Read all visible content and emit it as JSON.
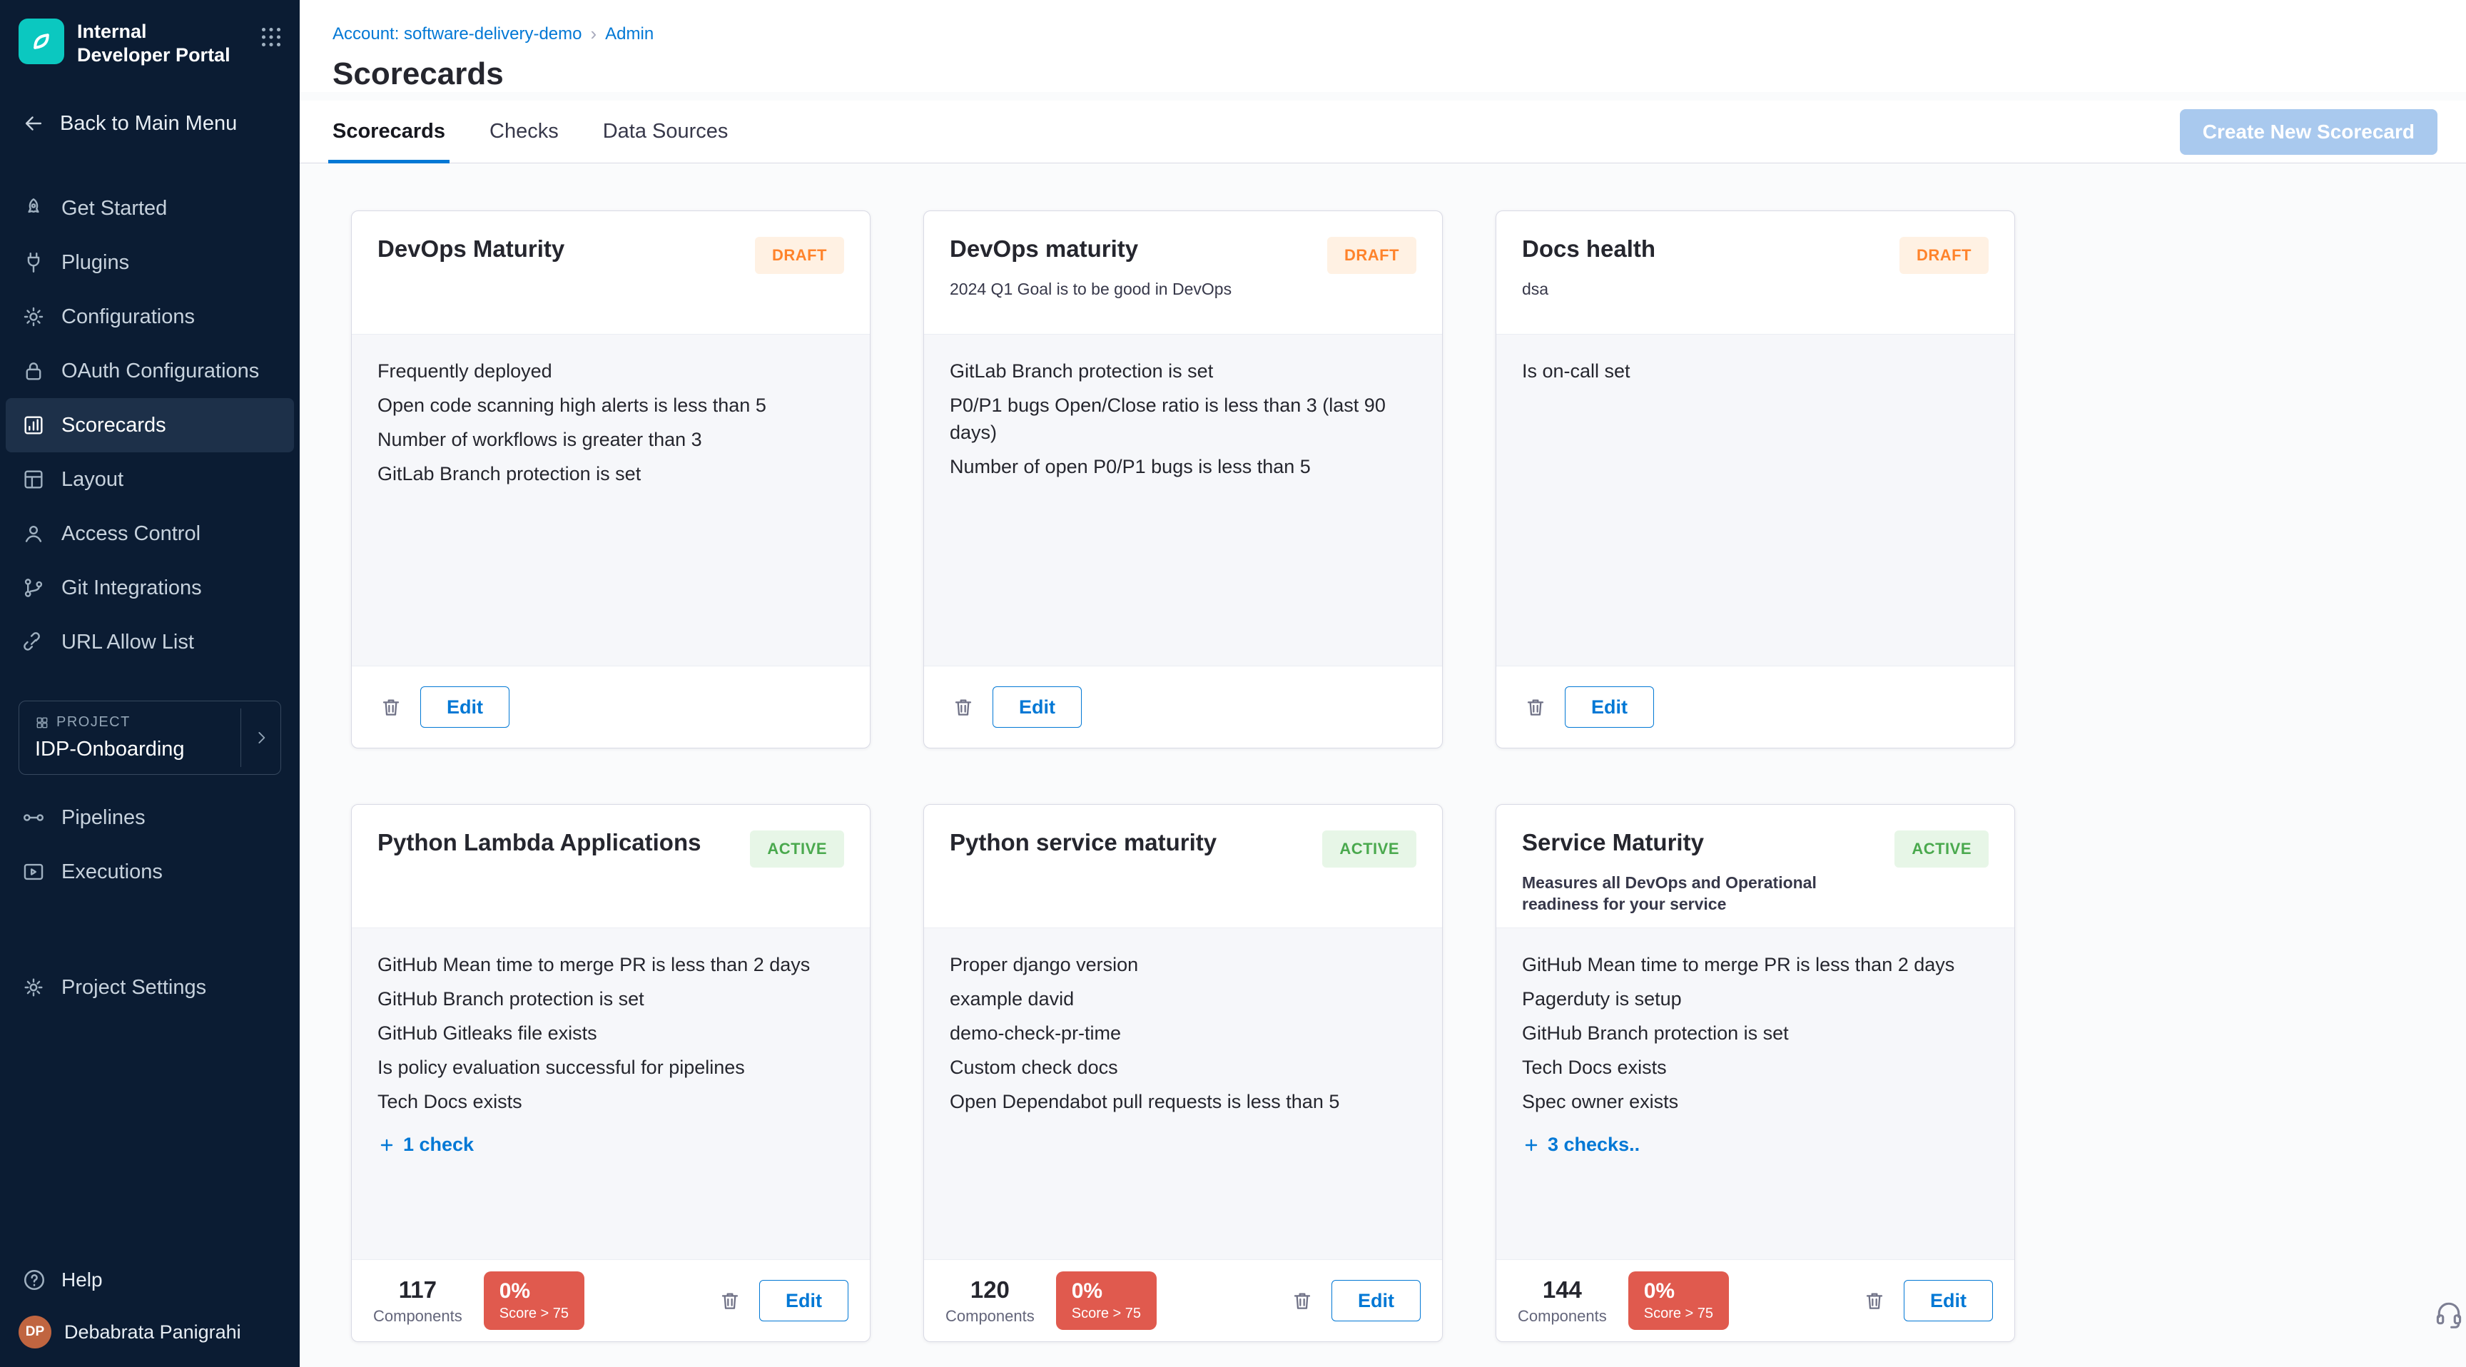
{
  "colors": {
    "accent_blue": "#0278d5",
    "brand_teal": "#0bc8c0",
    "sidebar_bg": "#0b1c33",
    "draft_text": "#ff832b",
    "draft_bg": "#fff1e3",
    "active_text": "#4aa94e",
    "active_bg": "#e7f6e7",
    "score_badge_bg": "#e05a4e"
  },
  "sidebar": {
    "brand_title": "Internal Developer Portal",
    "back_label": "Back to Main Menu",
    "sections": [
      {
        "items": [
          {
            "label": "Get Started",
            "icon": "rocket-icon"
          },
          {
            "label": "Plugins",
            "icon": "plug-icon"
          },
          {
            "label": "Configurations",
            "icon": "gears-icon"
          },
          {
            "label": "OAuth Configurations",
            "icon": "lock-icon"
          },
          {
            "label": "Scorecards",
            "icon": "scorecard-icon",
            "active": true
          },
          {
            "label": "Layout",
            "icon": "layout-icon"
          },
          {
            "label": "Access Control",
            "icon": "person-icon"
          },
          {
            "label": "Git Integrations",
            "icon": "git-branch-icon"
          },
          {
            "label": "URL Allow List",
            "icon": "link-icon"
          }
        ]
      },
      {
        "items": [
          {
            "label": "Pipelines",
            "icon": "pipelines-icon"
          },
          {
            "label": "Executions",
            "icon": "executions-icon"
          }
        ]
      },
      {
        "items": [
          {
            "label": "Project Settings",
            "icon": "settings-icon"
          }
        ]
      }
    ],
    "project": {
      "eyebrow": "PROJECT",
      "name": "IDP-Onboarding"
    },
    "help_label": "Help",
    "user": {
      "initials": "DP",
      "name": "Debabrata Panigrahi"
    }
  },
  "header": {
    "breadcrumb": {
      "account": "Account: software-delivery-demo",
      "separator": "›",
      "current": "Admin"
    },
    "title": "Scorecards",
    "tabs": [
      {
        "label": "Scorecards",
        "active": true
      },
      {
        "label": "Checks",
        "active": false
      },
      {
        "label": "Data Sources",
        "active": false
      }
    ],
    "create_button": "Create New Scorecard"
  },
  "labels": {
    "edit": "Edit",
    "components": "Components"
  },
  "cards": [
    {
      "name": "DevOps Maturity",
      "status": "DRAFT",
      "description": "",
      "checks": [
        "Frequently deployed",
        "Open code scanning high alerts is less than 5",
        "Number of workflows is greater than 3",
        "GitLab Branch protection is set"
      ],
      "more": ""
    },
    {
      "name": "DevOps maturity",
      "status": "DRAFT",
      "description": "2024 Q1 Goal is to be good in DevOps",
      "checks": [
        "GitLab Branch protection is set",
        "P0/P1 bugs Open/Close ratio is less than 3 (last 90 days)",
        "Number of open P0/P1 bugs is less than 5"
      ],
      "more": ""
    },
    {
      "name": "Docs health",
      "status": "DRAFT",
      "description": "dsa",
      "checks": [
        "Is on-call set"
      ],
      "more": ""
    },
    {
      "name": "Python Lambda Applications",
      "status": "ACTIVE",
      "description": "",
      "checks": [
        "GitHub Mean time to merge PR is less than 2 days",
        "GitHub Branch protection is set",
        "GitHub Gitleaks file exists",
        "Is policy evaluation successful for pipelines",
        "Tech Docs exists"
      ],
      "more": "1 check",
      "stats": {
        "components": "117",
        "score": "0%",
        "score_label": "Score > 75"
      }
    },
    {
      "name": "Python service maturity",
      "status": "ACTIVE",
      "description": "",
      "checks": [
        "Proper django version",
        "example david",
        "demo-check-pr-time",
        "Custom check docs",
        "Open Dependabot pull requests is less than 5"
      ],
      "more": "",
      "stats": {
        "components": "120",
        "score": "0%",
        "score_label": "Score > 75"
      }
    },
    {
      "name": "Service Maturity",
      "status": "ACTIVE",
      "description": "Measures all DevOps and Operational readiness for your service",
      "description_strong": true,
      "checks": [
        "GitHub Mean time to merge PR is less than 2 days",
        "Pagerduty is setup",
        "GitHub Branch protection is set",
        "Tech Docs exists",
        "Spec owner exists"
      ],
      "more": "3 checks..",
      "stats": {
        "components": "144",
        "score": "0%",
        "score_label": "Score > 75"
      }
    }
  ]
}
